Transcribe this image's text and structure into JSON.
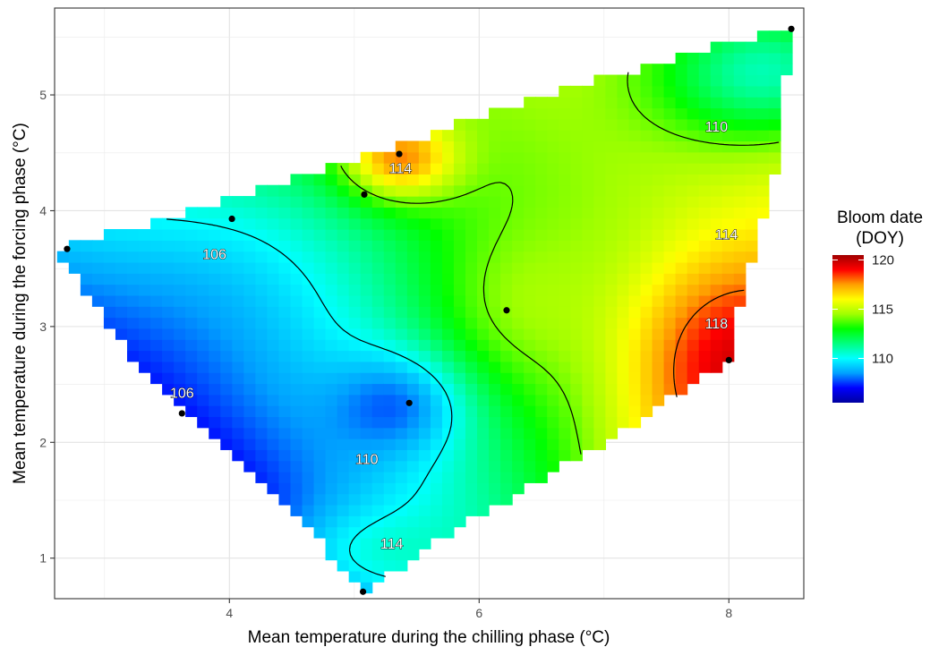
{
  "chart_data": {
    "type": "heatmap",
    "xlabel": "Mean temperature during the chilling phase (°C)",
    "ylabel": "Mean temperature during the forcing phase (°C)",
    "xlim": [
      2.6,
      8.6
    ],
    "ylim": [
      0.65,
      5.75
    ],
    "x_ticks": [
      4,
      6,
      8
    ],
    "x_tick_labels": [
      "4",
      "6",
      "8"
    ],
    "y_ticks": [
      1,
      2,
      3,
      4,
      5
    ],
    "y_tick_labels": [
      "1",
      "2",
      "3",
      "4",
      "5"
    ],
    "grid": true,
    "legend": {
      "title_line1": "Bloom date",
      "title_line2": "(DOY)",
      "placement": "right",
      "range": [
        105.5,
        120.5
      ],
      "ticks": [
        110,
        115,
        120
      ],
      "tick_labels": [
        "110",
        "115",
        "120"
      ],
      "colors": [
        "#0000a0",
        "#0000ff",
        "#00a0ff",
        "#00ffff",
        "#00ff80",
        "#00ff00",
        "#a0ff00",
        "#ffff00",
        "#ffa000",
        "#ff0000",
        "#a00000"
      ]
    },
    "observations": [
      {
        "x": 2.7,
        "y": 3.67
      },
      {
        "x": 4.02,
        "y": 3.93
      },
      {
        "x": 3.62,
        "y": 2.25
      },
      {
        "x": 5.08,
        "y": 4.14
      },
      {
        "x": 5.36,
        "y": 4.49
      },
      {
        "x": 5.44,
        "y": 2.34
      },
      {
        "x": 6.22,
        "y": 3.14
      },
      {
        "x": 5.07,
        "y": 0.71
      },
      {
        "x": 8.0,
        "y": 2.71
      },
      {
        "x": 8.5,
        "y": 5.57
      }
    ],
    "contour_labels": [
      {
        "text": "106",
        "x": 3.88,
        "y": 3.63
      },
      {
        "text": "106",
        "x": 3.62,
        "y": 2.43
      },
      {
        "text": "110",
        "x": 7.9,
        "y": 4.73
      },
      {
        "text": "114",
        "x": 5.37,
        "y": 4.37
      },
      {
        "text": "114",
        "x": 7.98,
        "y": 3.8
      },
      {
        "text": "118",
        "x": 7.9,
        "y": 3.03
      },
      {
        "text": "110",
        "x": 5.1,
        "y": 1.86
      },
      {
        "text": "114",
        "x": 5.3,
        "y": 1.13
      }
    ]
  }
}
